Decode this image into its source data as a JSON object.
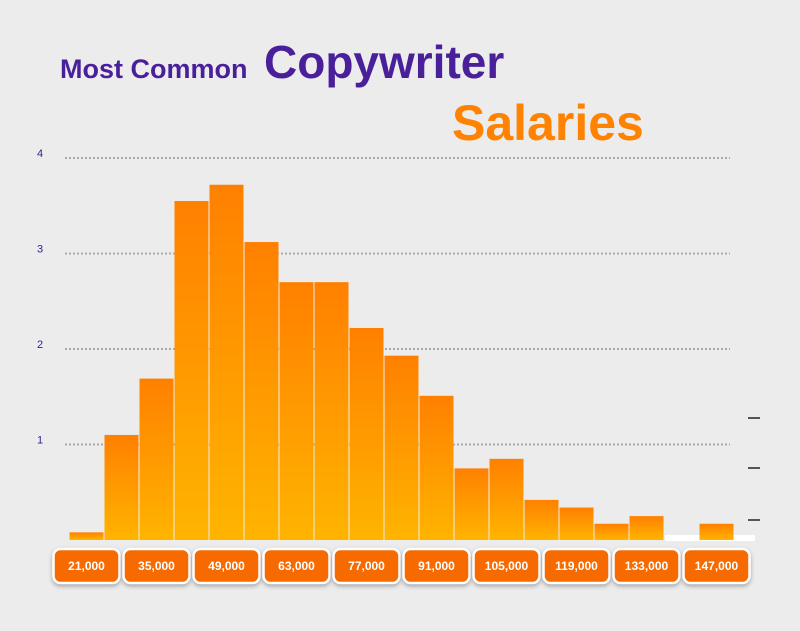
{
  "chart_data": {
    "type": "histogram",
    "title": [
      "Most Common",
      "Copywriter",
      "Salaries"
    ],
    "bins": [
      17500,
      24500,
      31500,
      38500,
      45500,
      52500,
      59500,
      66500,
      73500,
      80500,
      87500,
      94500,
      101500,
      108500,
      115500,
      122500,
      129500,
      136500,
      143500,
      150500
    ],
    "values": [
      0.08,
      1.1,
      1.69,
      3.55,
      3.72,
      3.12,
      2.7,
      2.7,
      2.22,
      1.93,
      1.51,
      0.75,
      0.85,
      0.42,
      0.34,
      0.17,
      0.25,
      0,
      0.17
    ],
    "color": "#ff8000",
    "xlim": [
      17500,
      150500
    ],
    "xticks": [
      {
        "value": 21000,
        "label": "21,000"
      },
      {
        "value": 35000,
        "label": "35,000"
      },
      {
        "value": 49000,
        "label": "49,000"
      },
      {
        "value": 63000,
        "label": "63,000"
      },
      {
        "value": 77000,
        "label": "77,000"
      },
      {
        "value": 91000,
        "label": "91,000"
      },
      {
        "value": 105000,
        "label": "105,000"
      },
      {
        "value": 119000,
        "label": "119,000"
      },
      {
        "value": 133000,
        "label": "133,000"
      },
      {
        "value": 147000,
        "label": "147,000"
      }
    ],
    "ylim": [
      0,
      4
    ],
    "yticks": [
      1,
      2,
      3,
      4
    ],
    "grid": true
  }
}
